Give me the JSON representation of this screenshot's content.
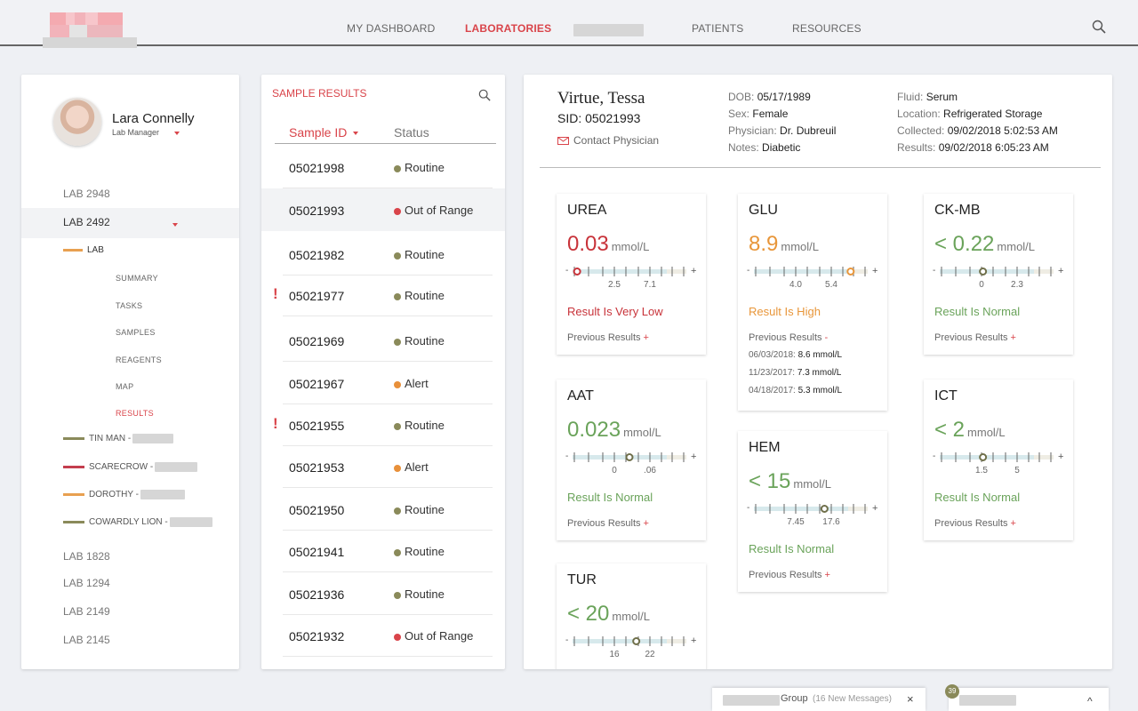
{
  "nav": {
    "items": [
      "MY DASHBOARD",
      "LABORATORIES",
      "PATIENTS",
      "RESOURCES"
    ],
    "active": "LABORATORIES"
  },
  "user": {
    "name": "Lara Connelly",
    "role": "Lab Manager"
  },
  "sidebar": {
    "labs_top": [
      "LAB 2948",
      "LAB 2492"
    ],
    "sub_heading": "LAB",
    "sub_items": [
      "SUMMARY",
      "TASKS",
      "SAMPLES",
      "REAGENTS",
      "MAP",
      "RESULTS"
    ],
    "active_sub": "RESULTS",
    "teams": [
      {
        "label": "TIN MAN -",
        "color": "#8a8a5a"
      },
      {
        "label": "SCARECROW -",
        "color": "#c43e4e"
      },
      {
        "label": "DOROTHY -",
        "color": "#e8a050"
      },
      {
        "label": "COWARDLY LION -",
        "color": "#8a8a5a"
      }
    ],
    "labs_bottom": [
      "LAB 1828",
      "LAB 1294",
      "LAB 2149",
      "LAB 2145"
    ]
  },
  "samples": {
    "title": "SAMPLE RESULTS",
    "col_id": "Sample ID",
    "col_status": "Status",
    "rows": [
      {
        "id": "05021998",
        "status": "Routine",
        "color": "#8a8a5a",
        "flag": ""
      },
      {
        "id": "05021993",
        "status": "Out of Range",
        "color": "#d9444a",
        "flag": "",
        "selected": true
      },
      {
        "id": "05021982",
        "status": "Routine",
        "color": "#8a8a5a",
        "flag": ""
      },
      {
        "id": "05021977",
        "status": "Routine",
        "color": "#8a8a5a",
        "flag": "!"
      },
      {
        "id": "05021969",
        "status": "Routine",
        "color": "#8a8a5a",
        "flag": ""
      },
      {
        "id": "05021967",
        "status": "Alert",
        "color": "#e8903a",
        "flag": ""
      },
      {
        "id": "05021955",
        "status": "Routine",
        "color": "#8a8a5a",
        "flag": "!"
      },
      {
        "id": "05021953",
        "status": "Alert",
        "color": "#e8903a",
        "flag": ""
      },
      {
        "id": "05021950",
        "status": "Routine",
        "color": "#8a8a5a",
        "flag": ""
      },
      {
        "id": "05021941",
        "status": "Routine",
        "color": "#8a8a5a",
        "flag": ""
      },
      {
        "id": "05021936",
        "status": "Routine",
        "color": "#8a8a5a",
        "flag": ""
      },
      {
        "id": "05021932",
        "status": "Out of Range",
        "color": "#d9444a",
        "flag": ""
      }
    ]
  },
  "patient": {
    "name": "Virtue, Tessa",
    "sid_label": "SID:",
    "sid": "05021993",
    "contact": "Contact Physician",
    "dob_label": "DOB:",
    "dob": "05/17/1989",
    "sex_label": "Sex:",
    "sex": "Female",
    "physician_label": "Physician:",
    "physician": "Dr. Dubreuil",
    "notes_label": "Notes:",
    "notes": "Diabetic",
    "fluid_label": "Fluid:",
    "fluid": "Serum",
    "location_label": "Location:",
    "location": "Refrigerated Storage",
    "collected_label": "Collected:",
    "collected": "09/02/2018 5:02:53 AM",
    "results_label": "Results:",
    "results": "09/02/2018 6:05:23 AM"
  },
  "tests": [
    {
      "name": "UREA",
      "value": "0.03",
      "unit": "mmol/L",
      "ticks": [
        "2.5",
        "7.1"
      ],
      "marker": 0.04,
      "result": "Result Is Very Low",
      "color": "#c8333a",
      "prev_label": "Previous Results",
      "prev_toggle": "+",
      "history": []
    },
    {
      "name": "AAT",
      "value": "0.023",
      "unit": "mmol/L",
      "ticks": [
        "0",
        ".06"
      ],
      "marker": 0.5,
      "result": "Result Is Normal",
      "color": "#6aa35a",
      "prev_label": "Previous Results",
      "prev_toggle": "+",
      "history": []
    },
    {
      "name": "TUR",
      "value": "< 20",
      "unit": "mmol/L",
      "ticks": [
        "16",
        "22"
      ],
      "marker": 0.56,
      "result": "",
      "color": "#6aa35a",
      "prev_label": "",
      "prev_toggle": "",
      "history": []
    },
    {
      "name": "GLU",
      "value": "8.9",
      "unit": "mmol/L",
      "ticks": [
        "4.0",
        "5.4"
      ],
      "marker": 0.85,
      "result": "Result Is High",
      "color": "#e8963a",
      "prev_label": "Previous Results",
      "prev_toggle": "-",
      "history": [
        {
          "date": "06/03/2018:",
          "val": "8.6 mmol/L"
        },
        {
          "date": "11/23/2017:",
          "val": "7.3 mmol/L"
        },
        {
          "date": "04/18/2017:",
          "val": "5.3 mmol/L"
        }
      ]
    },
    {
      "name": "HEM",
      "value": "< 15",
      "unit": "mmol/L",
      "ticks": [
        "7.45",
        "17.6"
      ],
      "marker": 0.62,
      "result": "Result Is Normal",
      "color": "#6aa35a",
      "prev_label": "Previous Results",
      "prev_toggle": "+",
      "history": []
    },
    {
      "name": "CK-MB",
      "value": "< 0.22",
      "unit": "mmol/L",
      "ticks": [
        "0",
        "2.3"
      ],
      "marker": 0.38,
      "result": "Result Is Normal",
      "color": "#6aa35a",
      "prev_label": "Previous Results",
      "prev_toggle": "+",
      "history": []
    },
    {
      "name": "ICT",
      "value": "< 2",
      "unit": "mmol/L",
      "ticks": [
        "1.5",
        "5"
      ],
      "marker": 0.38,
      "result": "Result Is Normal",
      "color": "#6aa35a",
      "prev_label": "Previous Results",
      "prev_toggle": "+",
      "history": []
    }
  ],
  "chat": {
    "group_label": "Group",
    "group_msgs": "(16 New Messages)",
    "close": "×",
    "badge": "39",
    "chevron": "^"
  }
}
